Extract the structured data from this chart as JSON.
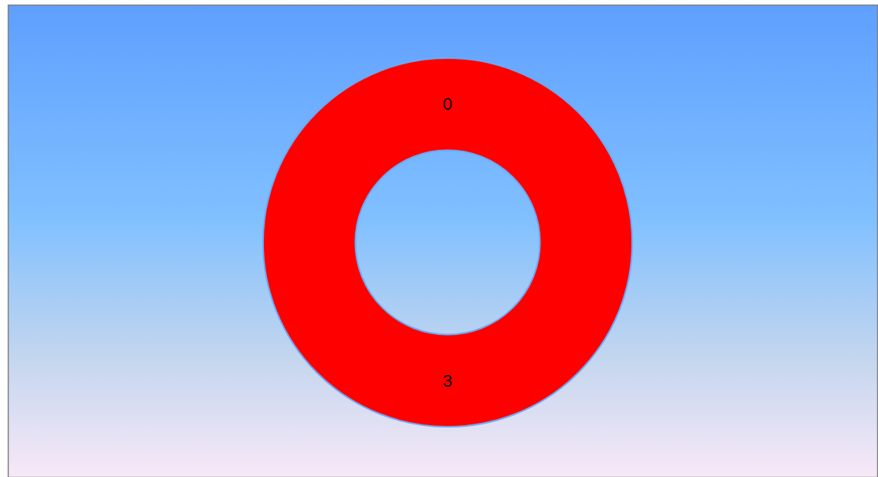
{
  "chart_data": {
    "type": "donut",
    "categories": [
      null,
      null
    ],
    "values": [
      0,
      3
    ],
    "value_labels": [
      "0",
      "3"
    ],
    "colors": [
      "#ff0000",
      "#ff0000"
    ]
  }
}
